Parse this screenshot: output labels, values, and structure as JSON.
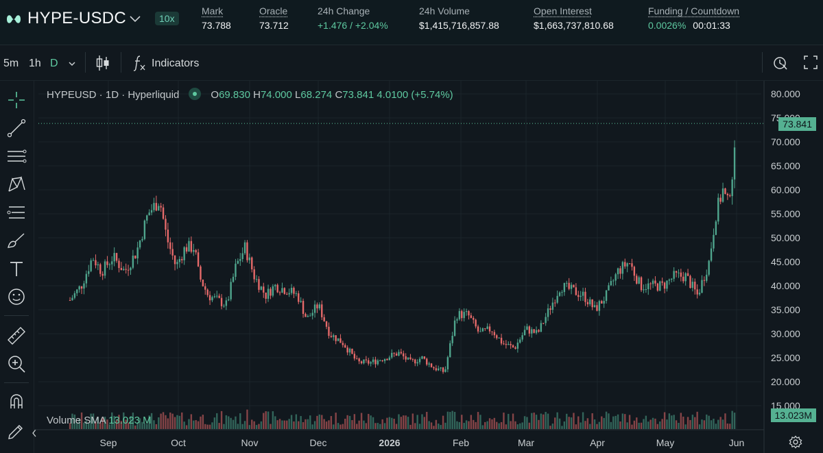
{
  "header": {
    "pair": "HYPE-USDC",
    "leverage": "10x",
    "stats": [
      {
        "label": "Mark",
        "value": "73.788",
        "underline": true
      },
      {
        "label": "Oracle",
        "value": "73.712",
        "underline": true
      },
      {
        "label": "24h Change",
        "value": "+1.476 / +2.04%",
        "underline": false,
        "green": true
      },
      {
        "label": "24h Volume",
        "value": "$1,415,716,857.88",
        "underline": false
      },
      {
        "label": "Open Interest",
        "value": "$1,663,737,810.68",
        "underline": true
      },
      {
        "label": "Funding / Countdown",
        "value_funding": "0.0026%",
        "value_countdown": "00:01:33",
        "underline": true
      }
    ]
  },
  "toolbar": {
    "intervals": [
      "5m",
      "1h",
      "D"
    ],
    "active_interval": "D",
    "indicators_label": "Indicators",
    "icons": [
      "chevron-down-icon",
      "candlestick-icon",
      "function-icon",
      "replay-icon",
      "fullscreen-icon"
    ]
  },
  "left_tools": [
    "crosshair-icon",
    "trendline-icon",
    "channel-icon",
    "pattern-icon",
    "fib-icon",
    "brush-icon",
    "text-icon",
    "emoji-icon",
    "ruler-icon",
    "zoom-in-icon",
    "magnet-icon",
    "lock-pencil-icon"
  ],
  "legend": {
    "symbol": "HYPEUSD · 1D · Hyperliquid",
    "o_label": "O",
    "o": "69.830",
    "h_label": "H",
    "h": "74.000",
    "l_label": "L",
    "l": "68.274",
    "c_label": "C",
    "c": "73.841",
    "change": "4.0100 (+5.74%)"
  },
  "volume_legend": {
    "label": "Volume",
    "sma_label": "SMA",
    "value": "13.023 M"
  },
  "price_tags": {
    "last": "73.841",
    "volume": "13.023M"
  },
  "colors": {
    "up": "#4fa58d",
    "down": "#e66a6a",
    "accent": "#5ec9a0",
    "bg": "#11181e"
  },
  "chart_data": {
    "type": "candlestick",
    "symbol": "HYPEUSD",
    "interval": "1D",
    "y_ticks": [
      "80.000",
      "75.000",
      "70.000",
      "65.000",
      "60.000",
      "55.000",
      "50.000",
      "45.000",
      "40.000",
      "35.000",
      "30.000",
      "25.000",
      "20.000",
      "15.000"
    ],
    "ylim": [
      15,
      80
    ],
    "x_ticks": [
      "Sep",
      "Oct",
      "Nov",
      "Dec",
      "2026",
      "Feb",
      "Mar",
      "Apr",
      "May",
      "Jun"
    ],
    "last_price": 73.841,
    "close_path": [
      [
        "Aug 15",
        37
      ],
      [
        "Aug 20",
        40
      ],
      [
        "Aug 25",
        46
      ],
      [
        "Aug 29",
        43
      ],
      [
        "Sep 3",
        46
      ],
      [
        "Sep 8",
        43
      ],
      [
        "Sep 13",
        47
      ],
      [
        "Sep 18",
        55
      ],
      [
        "Sep 23",
        58
      ],
      [
        "Sep 26",
        50
      ],
      [
        "Sep 30",
        44
      ],
      [
        "Oct 4",
        48
      ],
      [
        "Oct 8",
        48
      ],
      [
        "Oct 10",
        42
      ],
      [
        "Oct 14",
        38
      ],
      [
        "Oct 18",
        37
      ],
      [
        "Oct 22",
        36
      ],
      [
        "Oct 26",
        44
      ],
      [
        "Oct 30",
        48
      ],
      [
        "Nov 3",
        42
      ],
      [
        "Nov 8",
        38
      ],
      [
        "Nov 12",
        40
      ],
      [
        "Nov 18",
        39
      ],
      [
        "Nov 22",
        38
      ],
      [
        "Nov 26",
        33
      ],
      [
        "Dec 1",
        36
      ],
      [
        "Dec 6",
        30
      ],
      [
        "Dec 12",
        28
      ],
      [
        "Dec 18",
        24
      ],
      [
        "Dec 24",
        24
      ],
      [
        "Dec 30",
        25
      ],
      [
        "Jan 5",
        26
      ],
      [
        "Jan 10",
        24
      ],
      [
        "Jan 15",
        25
      ],
      [
        "Jan 20",
        23
      ],
      [
        "Jan 25",
        22
      ],
      [
        "Jan 30",
        34
      ],
      [
        "Feb 4",
        34
      ],
      [
        "Feb 9",
        30
      ],
      [
        "Feb 14",
        31
      ],
      [
        "Feb 19",
        28
      ],
      [
        "Feb 24",
        27
      ],
      [
        "Mar 1",
        31
      ],
      [
        "Mar 6",
        30
      ],
      [
        "Mar 11",
        35
      ],
      [
        "Mar 16",
        40
      ],
      [
        "Mar 21",
        39
      ],
      [
        "Mar 26",
        38
      ],
      [
        "Mar 31",
        35
      ],
      [
        "Apr 5",
        38
      ],
      [
        "Apr 10",
        43
      ],
      [
        "Apr 15",
        45
      ],
      [
        "Apr 20",
        40
      ],
      [
        "Apr 25",
        40
      ],
      [
        "Apr 30",
        40
      ],
      [
        "May 5",
        42
      ],
      [
        "May 10",
        42
      ],
      [
        "May 15",
        38
      ],
      [
        "May 20",
        45
      ],
      [
        "May 23",
        55
      ],
      [
        "May 26",
        60
      ],
      [
        "May 28",
        57
      ],
      [
        "May 31",
        66
      ],
      [
        "Jun 1",
        73
      ]
    ]
  }
}
